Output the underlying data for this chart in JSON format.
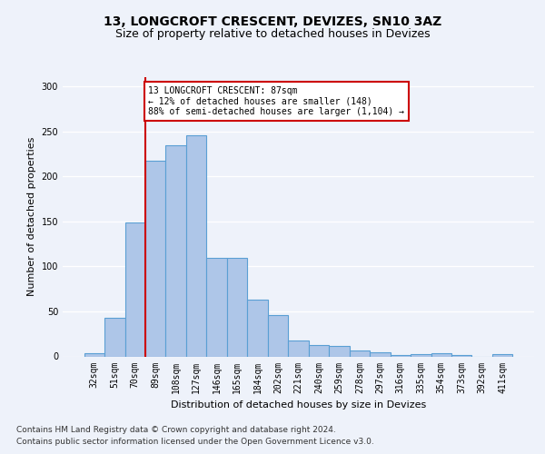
{
  "title1": "13, LONGCROFT CRESCENT, DEVIZES, SN10 3AZ",
  "title2": "Size of property relative to detached houses in Devizes",
  "xlabel": "Distribution of detached houses by size in Devizes",
  "ylabel": "Number of detached properties",
  "categories": [
    "32sqm",
    "51sqm",
    "70sqm",
    "89sqm",
    "108sqm",
    "127sqm",
    "146sqm",
    "165sqm",
    "184sqm",
    "202sqm",
    "221sqm",
    "240sqm",
    "259sqm",
    "278sqm",
    "297sqm",
    "316sqm",
    "335sqm",
    "354sqm",
    "373sqm",
    "392sqm",
    "411sqm"
  ],
  "values": [
    4,
    43,
    149,
    217,
    234,
    245,
    109,
    109,
    63,
    46,
    18,
    13,
    12,
    7,
    5,
    2,
    3,
    4,
    2,
    0,
    3
  ],
  "bar_color": "#aec6e8",
  "bar_edge_color": "#5a9fd4",
  "vline_color": "#cc0000",
  "vline_index": 2.5,
  "annotation_text": "13 LONGCROFT CRESCENT: 87sqm\n← 12% of detached houses are smaller (148)\n88% of semi-detached houses are larger (1,104) →",
  "annotation_box_color": "#ffffff",
  "annotation_box_edge_color": "#cc0000",
  "ylim": [
    0,
    310
  ],
  "yticks": [
    0,
    50,
    100,
    150,
    200,
    250,
    300
  ],
  "footer1": "Contains HM Land Registry data © Crown copyright and database right 2024.",
  "footer2": "Contains public sector information licensed under the Open Government Licence v3.0.",
  "background_color": "#eef2fa",
  "plot_bg_color": "#eef2fa",
  "title1_fontsize": 10,
  "title2_fontsize": 9,
  "ylabel_fontsize": 8,
  "xlabel_fontsize": 8,
  "tick_fontsize": 7,
  "footer_fontsize": 6.5
}
